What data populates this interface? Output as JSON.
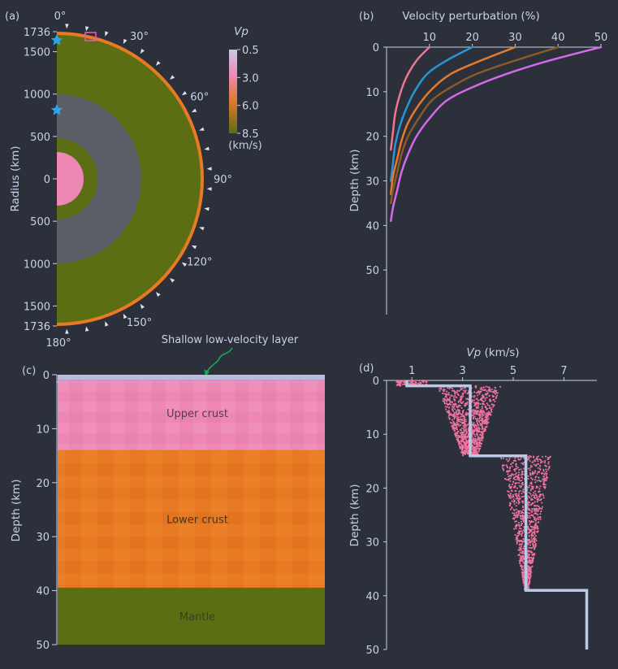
{
  "colors": {
    "background": "#2b303b",
    "text": "#c8d3e8",
    "axis": "#c8d3e8",
    "olive_mantle": "#5c6e14",
    "grey_core": "#5b5e66",
    "pink_crust": "#ef87b5",
    "orange_crust": "#e87a24",
    "shallow_layer": "#b9bcdc",
    "arrow": "#1fa35a",
    "star": "#2aa6e8"
  },
  "panel_a": {
    "label": "(a)",
    "ylabel": "Radius (km)",
    "colorbar": {
      "title": "Vp",
      "unit": "(km/s)",
      "ticks": [
        "0.5",
        "3.0",
        "6.0",
        "8.5"
      ],
      "stops": [
        "#c9c9e6",
        "#ee8ab8",
        "#e0782a",
        "#5c6e14"
      ]
    },
    "top_tick_labels": [
      "1736",
      "1500",
      "1000",
      "500",
      "0"
    ],
    "bottom_tick_labels": [
      "500",
      "1000",
      "1500",
      "1736"
    ],
    "top_tick_values": [
      1736,
      1500,
      1000,
      500,
      0
    ],
    "bottom_tick_values": [
      500,
      1000,
      1500,
      1736
    ],
    "angle_labels": [
      "0°",
      "30°",
      "60°",
      "90°",
      "120°",
      "150°",
      "180°"
    ],
    "angle_values": [
      0,
      30,
      60,
      90,
      120,
      150,
      180
    ],
    "layers_km": {
      "outer": 1736,
      "crust_base": 1696,
      "mantle_base": 1000,
      "grey_base": 480,
      "inner_olive": 300,
      "core": 240
    },
    "station_count": 24,
    "source_depths_km": [
      1600,
      800
    ]
  },
  "panel_b": {
    "label": "(b)",
    "xlabel": "Velocity perturbation (%)",
    "ylabel": "Depth (km)"
  },
  "panel_c": {
    "label": "(c)",
    "annotation": "Shallow low-velocity layer",
    "ylabel": "Depth (km)",
    "regions": [
      {
        "name": "Upper crust",
        "top": 1,
        "bottom": 14
      },
      {
        "name": "Lower crust",
        "top": 14,
        "bottom": 39.5
      },
      {
        "name": "Mantle",
        "top": 39.5,
        "bottom": 50
      }
    ]
  },
  "panel_d": {
    "label": "(d)",
    "xlabel_italic": "Vp",
    "xlabel_unit": " (km/s)",
    "ylabel": "Depth (km)"
  },
  "chart_data": [
    {
      "type": "line",
      "panel": "b",
      "title": "",
      "xlabel": "Velocity perturbation (%)",
      "ylabel": "Depth (km)",
      "xlim": [
        0,
        50
      ],
      "ylim": [
        60,
        0
      ],
      "xticks": [
        10,
        20,
        30,
        40,
        50
      ],
      "yticks": [
        0,
        10,
        20,
        30,
        40,
        50
      ],
      "series": [
        {
          "color": "#f0758f",
          "x": [
            10,
            7,
            4.5,
            3,
            2,
            1.5,
            1
          ],
          "y": [
            0,
            3,
            7,
            11,
            15,
            19,
            23
          ]
        },
        {
          "color": "#2b94d6",
          "x": [
            20,
            14,
            9.5,
            6.5,
            4.5,
            3,
            2,
            1.5,
            1
          ],
          "y": [
            0,
            3,
            6,
            10,
            14,
            18,
            22,
            26,
            30
          ]
        },
        {
          "color": "#e57a2b",
          "x": [
            30,
            22,
            15,
            10.5,
            7.5,
            5,
            3.5,
            2.5,
            1.5,
            1
          ],
          "y": [
            0,
            3,
            6,
            9.5,
            13,
            17,
            21,
            25,
            29,
            33
          ]
        },
        {
          "color": "#8a5a26",
          "x": [
            40,
            30,
            21,
            15,
            10.5,
            7.5,
            5,
            3.5,
            2.5,
            1.5,
            1
          ],
          "y": [
            0,
            3,
            6,
            9,
            12,
            16,
            20,
            24,
            28,
            32,
            35
          ]
        },
        {
          "color": "#d36ae8",
          "x": [
            50,
            38,
            28,
            20,
            14,
            10,
            7,
            5,
            3.5,
            2.5,
            1.5,
            1
          ],
          "y": [
            0,
            3,
            6,
            9,
            12,
            16,
            20,
            24,
            28,
            32,
            36,
            39
          ]
        }
      ]
    },
    {
      "type": "heatmap",
      "panel": "c",
      "title": "",
      "ylabel": "Depth (km)",
      "ylim": [
        50,
        0
      ],
      "yticks": [
        0,
        10,
        20,
        30,
        40,
        50
      ],
      "layers": [
        {
          "name": "Shallow low-velocity layer",
          "top": 0,
          "bottom": 1,
          "vp": 0.8
        },
        {
          "name": "Upper crust",
          "top": 1,
          "bottom": 14,
          "vp": 3.3
        },
        {
          "name": "Lower crust",
          "top": 14,
          "bottom": 39.5,
          "vp": 5.5
        },
        {
          "name": "Mantle",
          "top": 39.5,
          "bottom": 50,
          "vp": 7.9
        }
      ]
    },
    {
      "type": "scatter",
      "panel": "d",
      "title": "",
      "xlabel": "Vp (km/s)",
      "ylabel": "Depth (km)",
      "xlim": [
        0,
        8.3
      ],
      "ylim": [
        50,
        0
      ],
      "xticks": [
        1,
        3,
        5,
        7
      ],
      "yticks": [
        0,
        10,
        20,
        30,
        40,
        50
      ],
      "reference_profile": {
        "color": "#b9c9e8",
        "vp": [
          0.8,
          0.8,
          3.3,
          3.3,
          5.5,
          5.5,
          7.9,
          7.9
        ],
        "depth": [
          0,
          1,
          1,
          14,
          14,
          39,
          39,
          50
        ]
      },
      "perturbed_samples": [
        {
          "depth_range": [
            0,
            1
          ],
          "vp_min": 0.4,
          "vp_max": 1.6
        },
        {
          "depth_range": [
            1,
            14
          ],
          "vp_at_top": [
            2.0,
            4.5
          ],
          "vp_at_bottom": [
            3.0,
            3.6
          ]
        },
        {
          "depth_range": [
            14,
            39
          ],
          "vp_at_top": [
            4.5,
            6.5
          ],
          "vp_at_bottom": [
            5.45,
            5.6
          ]
        }
      ]
    }
  ]
}
